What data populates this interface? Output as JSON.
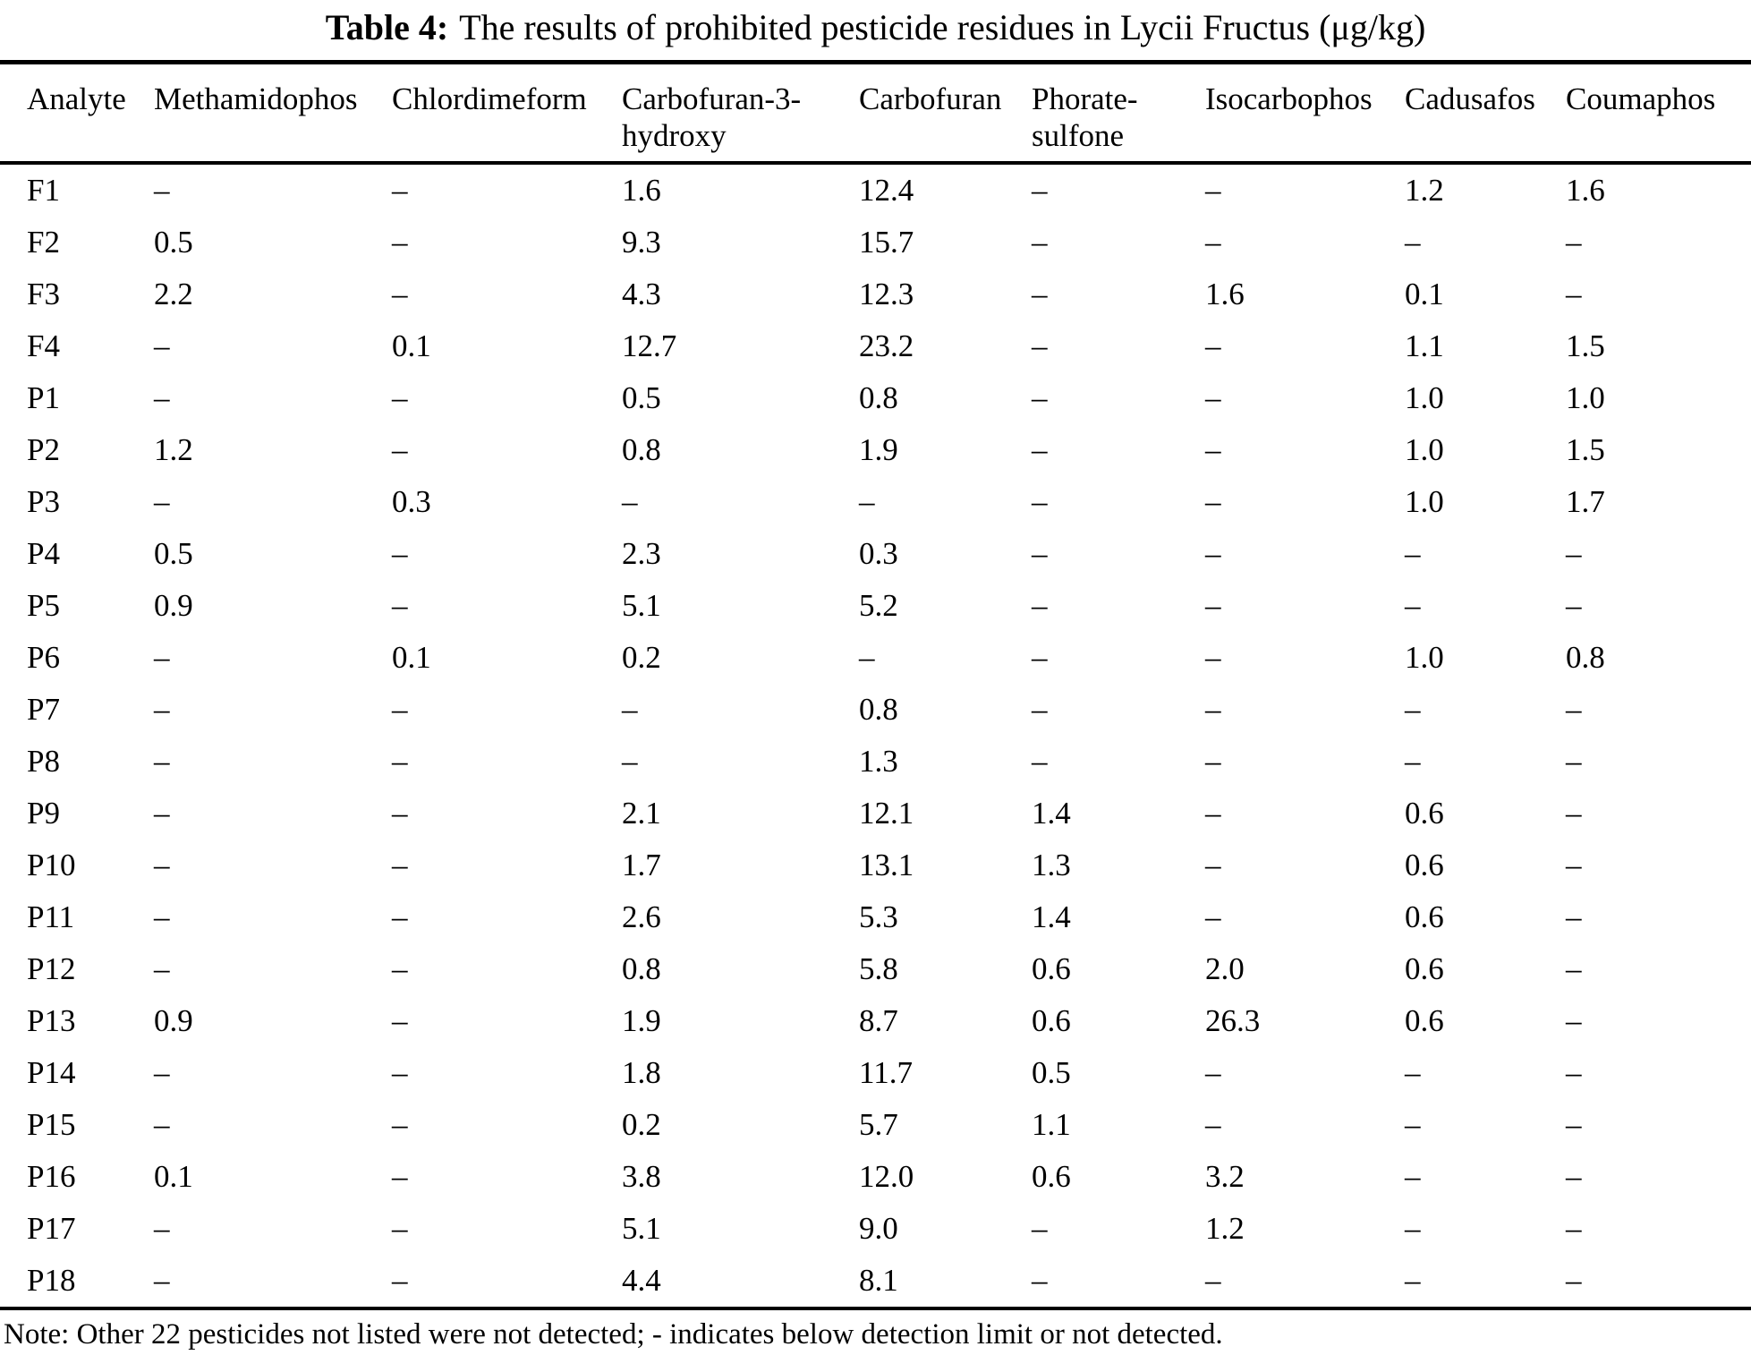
{
  "table": {
    "title_label": "Table 4:",
    "title_text": "The results of prohibited pesticide residues in Lycii Fructus (μg/kg)",
    "columns": [
      {
        "line1": "Analyte",
        "line2": ""
      },
      {
        "line1": "Methamidophos",
        "line2": ""
      },
      {
        "line1": "Chlordimeform",
        "line2": ""
      },
      {
        "line1": "Carbofuran-3-",
        "line2": "hydroxy"
      },
      {
        "line1": "Carbofuran",
        "line2": ""
      },
      {
        "line1": "Phorate-",
        "line2": "sulfone"
      },
      {
        "line1": "Isocarbophos",
        "line2": ""
      },
      {
        "line1": "Cadusafos",
        "line2": ""
      },
      {
        "line1": "Coumaphos",
        "line2": ""
      }
    ],
    "rows": [
      {
        "analyte": "F1",
        "values": [
          "–",
          "–",
          "1.6",
          "12.4",
          "–",
          "–",
          "1.2",
          "1.6"
        ]
      },
      {
        "analyte": "F2",
        "values": [
          "0.5",
          "–",
          "9.3",
          "15.7",
          "–",
          "–",
          "–",
          "–"
        ]
      },
      {
        "analyte": "F3",
        "values": [
          "2.2",
          "–",
          "4.3",
          "12.3",
          "–",
          "1.6",
          "0.1",
          "–"
        ]
      },
      {
        "analyte": "F4",
        "values": [
          "–",
          "0.1",
          "12.7",
          "23.2",
          "–",
          "–",
          "1.1",
          "1.5"
        ]
      },
      {
        "analyte": "P1",
        "values": [
          "–",
          "–",
          "0.5",
          "0.8",
          "–",
          "–",
          "1.0",
          "1.0"
        ]
      },
      {
        "analyte": "P2",
        "values": [
          "1.2",
          "–",
          "0.8",
          "1.9",
          "–",
          "–",
          "1.0",
          "1.5"
        ]
      },
      {
        "analyte": "P3",
        "values": [
          "–",
          "0.3",
          "–",
          "–",
          "–",
          "–",
          "1.0",
          "1.7"
        ]
      },
      {
        "analyte": "P4",
        "values": [
          "0.5",
          "–",
          "2.3",
          "0.3",
          "–",
          "–",
          "–",
          "–"
        ]
      },
      {
        "analyte": "P5",
        "values": [
          "0.9",
          "–",
          "5.1",
          "5.2",
          "–",
          "–",
          "–",
          "–"
        ]
      },
      {
        "analyte": "P6",
        "values": [
          "–",
          "0.1",
          "0.2",
          "–",
          "–",
          "–",
          "1.0",
          "0.8"
        ]
      },
      {
        "analyte": "P7",
        "values": [
          "–",
          "–",
          "–",
          "0.8",
          "–",
          "–",
          "–",
          "–"
        ]
      },
      {
        "analyte": "P8",
        "values": [
          "–",
          "–",
          "–",
          "1.3",
          "–",
          "–",
          "–",
          "–"
        ]
      },
      {
        "analyte": "P9",
        "values": [
          "–",
          "–",
          "2.1",
          "12.1",
          "1.4",
          "–",
          "0.6",
          "–"
        ]
      },
      {
        "analyte": "P10",
        "values": [
          "–",
          "–",
          "1.7",
          "13.1",
          "1.3",
          "–",
          "0.6",
          "–"
        ]
      },
      {
        "analyte": "P11",
        "values": [
          "–",
          "–",
          "2.6",
          "5.3",
          "1.4",
          "–",
          "0.6",
          "–"
        ]
      },
      {
        "analyte": "P12",
        "values": [
          "–",
          "–",
          "0.8",
          "5.8",
          "0.6",
          "2.0",
          "0.6",
          "–"
        ]
      },
      {
        "analyte": "P13",
        "values": [
          "0.9",
          "–",
          "1.9",
          "8.7",
          "0.6",
          "26.3",
          "0.6",
          "–"
        ]
      },
      {
        "analyte": "P14",
        "values": [
          "–",
          "–",
          "1.8",
          "11.7",
          "0.5",
          "–",
          "–",
          "–"
        ]
      },
      {
        "analyte": "P15",
        "values": [
          "–",
          "–",
          "0.2",
          "5.7",
          "1.1",
          "–",
          "–",
          "–"
        ]
      },
      {
        "analyte": "P16",
        "values": [
          "0.1",
          "–",
          "3.8",
          "12.0",
          "0.6",
          "3.2",
          "–",
          "–"
        ]
      },
      {
        "analyte": "P17",
        "values": [
          "–",
          "–",
          "5.1",
          "9.0",
          "–",
          "1.2",
          "–",
          "–"
        ]
      },
      {
        "analyte": "P18",
        "values": [
          "–",
          "–",
          "4.4",
          "8.1",
          "–",
          "–",
          "–",
          "–"
        ]
      }
    ],
    "note": "Note: Other 22 pesticides not listed were not detected; - indicates below detection limit or not detected."
  }
}
